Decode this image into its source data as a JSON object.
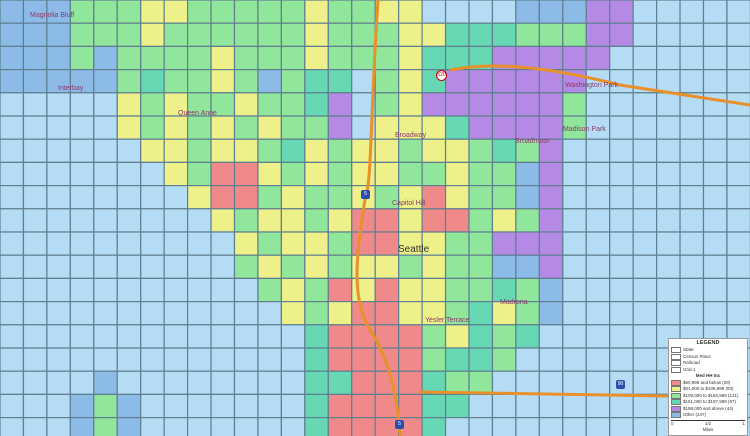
{
  "colors": {
    "R": "#f08a8a",
    "Y": "#eef08a",
    "G": "#90e69a",
    "T": "#66d8b4",
    "P": "#b48ae6",
    "B": "#8cbbe8",
    "W": "#b5dcf5",
    "road": "#e8902a"
  },
  "cells": [
    "BBBGGGYYGGGGGYGGYYWWWWBBBPPWWWWW",
    "BBBGGGYGGGGGGYGGGYYTTTGGGPPWWWWW",
    "BBBGBGGGGYGGGYGGGYTTTPPPPPWWWWWW",
    "BBBBBGTGGYGBGTTWGYTPPPPPPWWWWWWW",
    "WWWWWYGYGGYGGTPWGYPPPPPPGWWWWWWW",
    "WWWWWYGYGYGYGGPWYYYTPPPPGWWWWWWW",
    "WWWWWWYYGYYGTYGYYGYYGTGPWWWWWWWW",
    "WWWWWWWYGRRYGYGYYGGYGGBPWWWWWWWW",
    "WWWWWWWWYRRGYGGYGYRYGGBPWWWWWWWW",
    "WWWWWWWWWYGYYGYRRYRRGYGPWWWWWWWW",
    "WWWWWWWWWWYGYYGRRYYGGPPPWWWWWWWW",
    "WWWWWWWWWWGYGYGYYGYGGBBPWWWWWWWW",
    "WWWWWWWWWWWGYGRYRYYGGTGBWWWWWWWW",
    "WWWWWWWWWWWWYGYRRYYGTYGBWWWWWWWW",
    "WWWWWWWWWWWWWTRRRRGYTGTWWWWWWWWW",
    "WWWWWWWWWWWWWTRRRRGTTGWWWWWWWWWW",
    "WWWWBWWWWWWWWTTRRRTGGWWWWWWWWWWW",
    "WWWBGBWWWWWWWTRRRRTTWWWWWWWWWWWW",
    "WWWBGBWWWWWWWTRRRRTWWWWWWWWWWWWW"
  ],
  "places": [
    "Magnolia Bluff",
    "Interbay",
    "Queen Anne",
    "Capitol Hill",
    "Seattle",
    "Madrona",
    "Washington Park",
    "Madison Park",
    "Broadmoor",
    "Broadway",
    "Yesler Terrace"
  ],
  "shields": [
    "5",
    "520",
    "90",
    "5"
  ],
  "legend": {
    "title": "LEGEND",
    "layers": [
      "State",
      "Census Place",
      "Railroad",
      "Grid-1"
    ],
    "subtitle": "Med HH Inc",
    "classes": [
      {
        "label": "$60,999 and below (29)",
        "color": "#f08a8a"
      },
      {
        "label": "$61,000 to $108,999 (93)",
        "color": "#eef08a"
      },
      {
        "label": "$109,000 to $150,999 (121)",
        "color": "#90e69a"
      },
      {
        "label": "$151,000 to $197,999 (97)",
        "color": "#66d8b4"
      },
      {
        "label": "$198,000 and above (44)",
        "color": "#b48ae6"
      },
      {
        "label": "Other (247)",
        "color": "#8cbbe8"
      }
    ],
    "scale": [
      "0",
      "1/2",
      "1"
    ],
    "scale_unit": "Miles"
  }
}
